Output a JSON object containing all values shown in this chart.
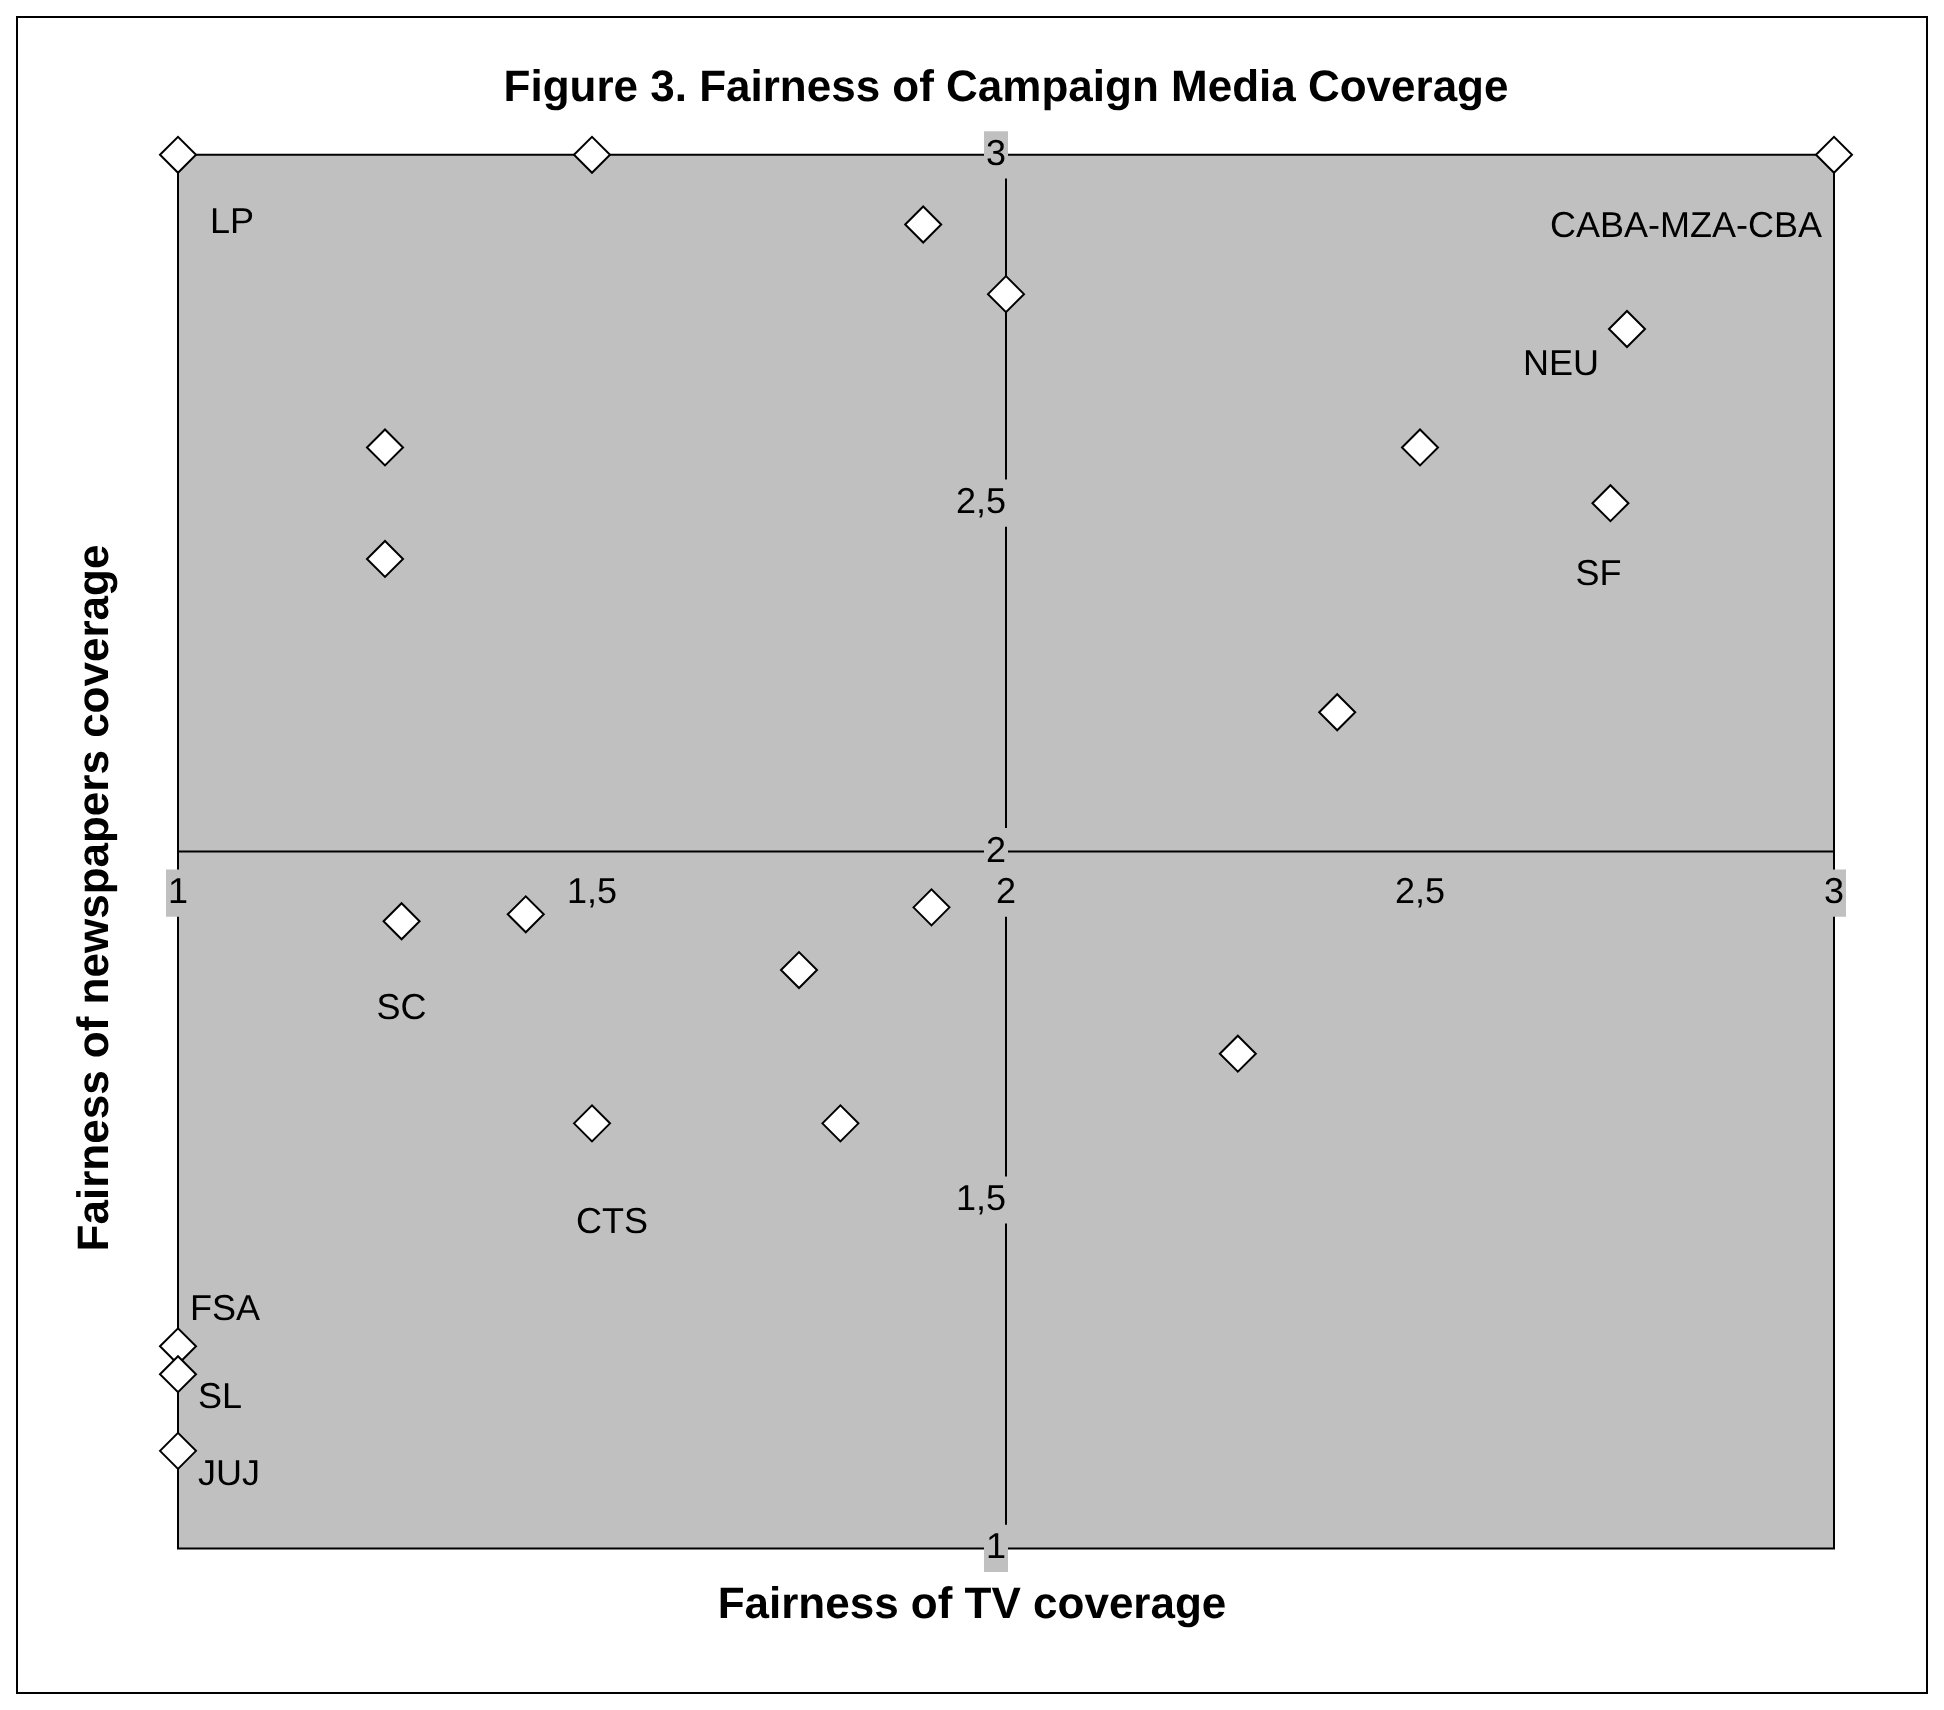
{
  "chart_data": {
    "type": "scatter",
    "title": "Figure 3. Fairness of Campaign Media Coverage",
    "xlabel": "Fairness of TV coverage",
    "ylabel": "Fairness of newspapers coverage",
    "series": [
      {
        "color": "#ffffff",
        "x": [
          1,
          1.5,
          3,
          1.9,
          2,
          1.25,
          1.25,
          2.75,
          2.5,
          2.73,
          2.4,
          1.91,
          1.27,
          1.42,
          1.75,
          2.28,
          1.5,
          1.8,
          1,
          1,
          1
        ],
        "values": [
          3,
          3,
          3,
          2.9,
          2.8,
          2.58,
          2.42,
          2.75,
          2.58,
          2.5,
          2.2,
          1.92,
          1.9,
          1.91,
          1.83,
          1.71,
          1.61,
          1.61,
          1.29,
          1.25,
          1.14
        ]
      }
    ],
    "marker": "diamond",
    "grid": false,
    "legend": false,
    "xlim": [
      1,
      3
    ],
    "ylim": [
      1,
      3
    ],
    "xticks": [
      1,
      {
        "value": 1.5,
        "label": "1,5"
      },
      2,
      {
        "value": 2.5,
        "label": "2,5"
      },
      3
    ],
    "yticks": [
      1,
      {
        "value": 1.5,
        "label": "1,5"
      },
      2,
      {
        "value": 2.5,
        "label": "2,5"
      },
      3
    ],
    "annotations": [
      {
        "text": "LP",
        "x": 1,
        "y": 3
      },
      {
        "text": "CABA-MZA-CBA",
        "x": 3,
        "y": 3
      },
      {
        "text": "NEU",
        "x": 2.75,
        "y": 2.75
      },
      {
        "text": "SF",
        "x": 2.73,
        "y": 2.5
      },
      {
        "text": "SC",
        "x": 1.27,
        "y": 1.9
      },
      {
        "text": "CTS",
        "x": 1.5,
        "y": 1.61
      },
      {
        "text": "FSA",
        "x": 1,
        "y": 1.29
      },
      {
        "text": "SL",
        "x": 1,
        "y": 1.25
      },
      {
        "text": "JUJ",
        "x": 1,
        "y": 1.14
      }
    ]
  }
}
